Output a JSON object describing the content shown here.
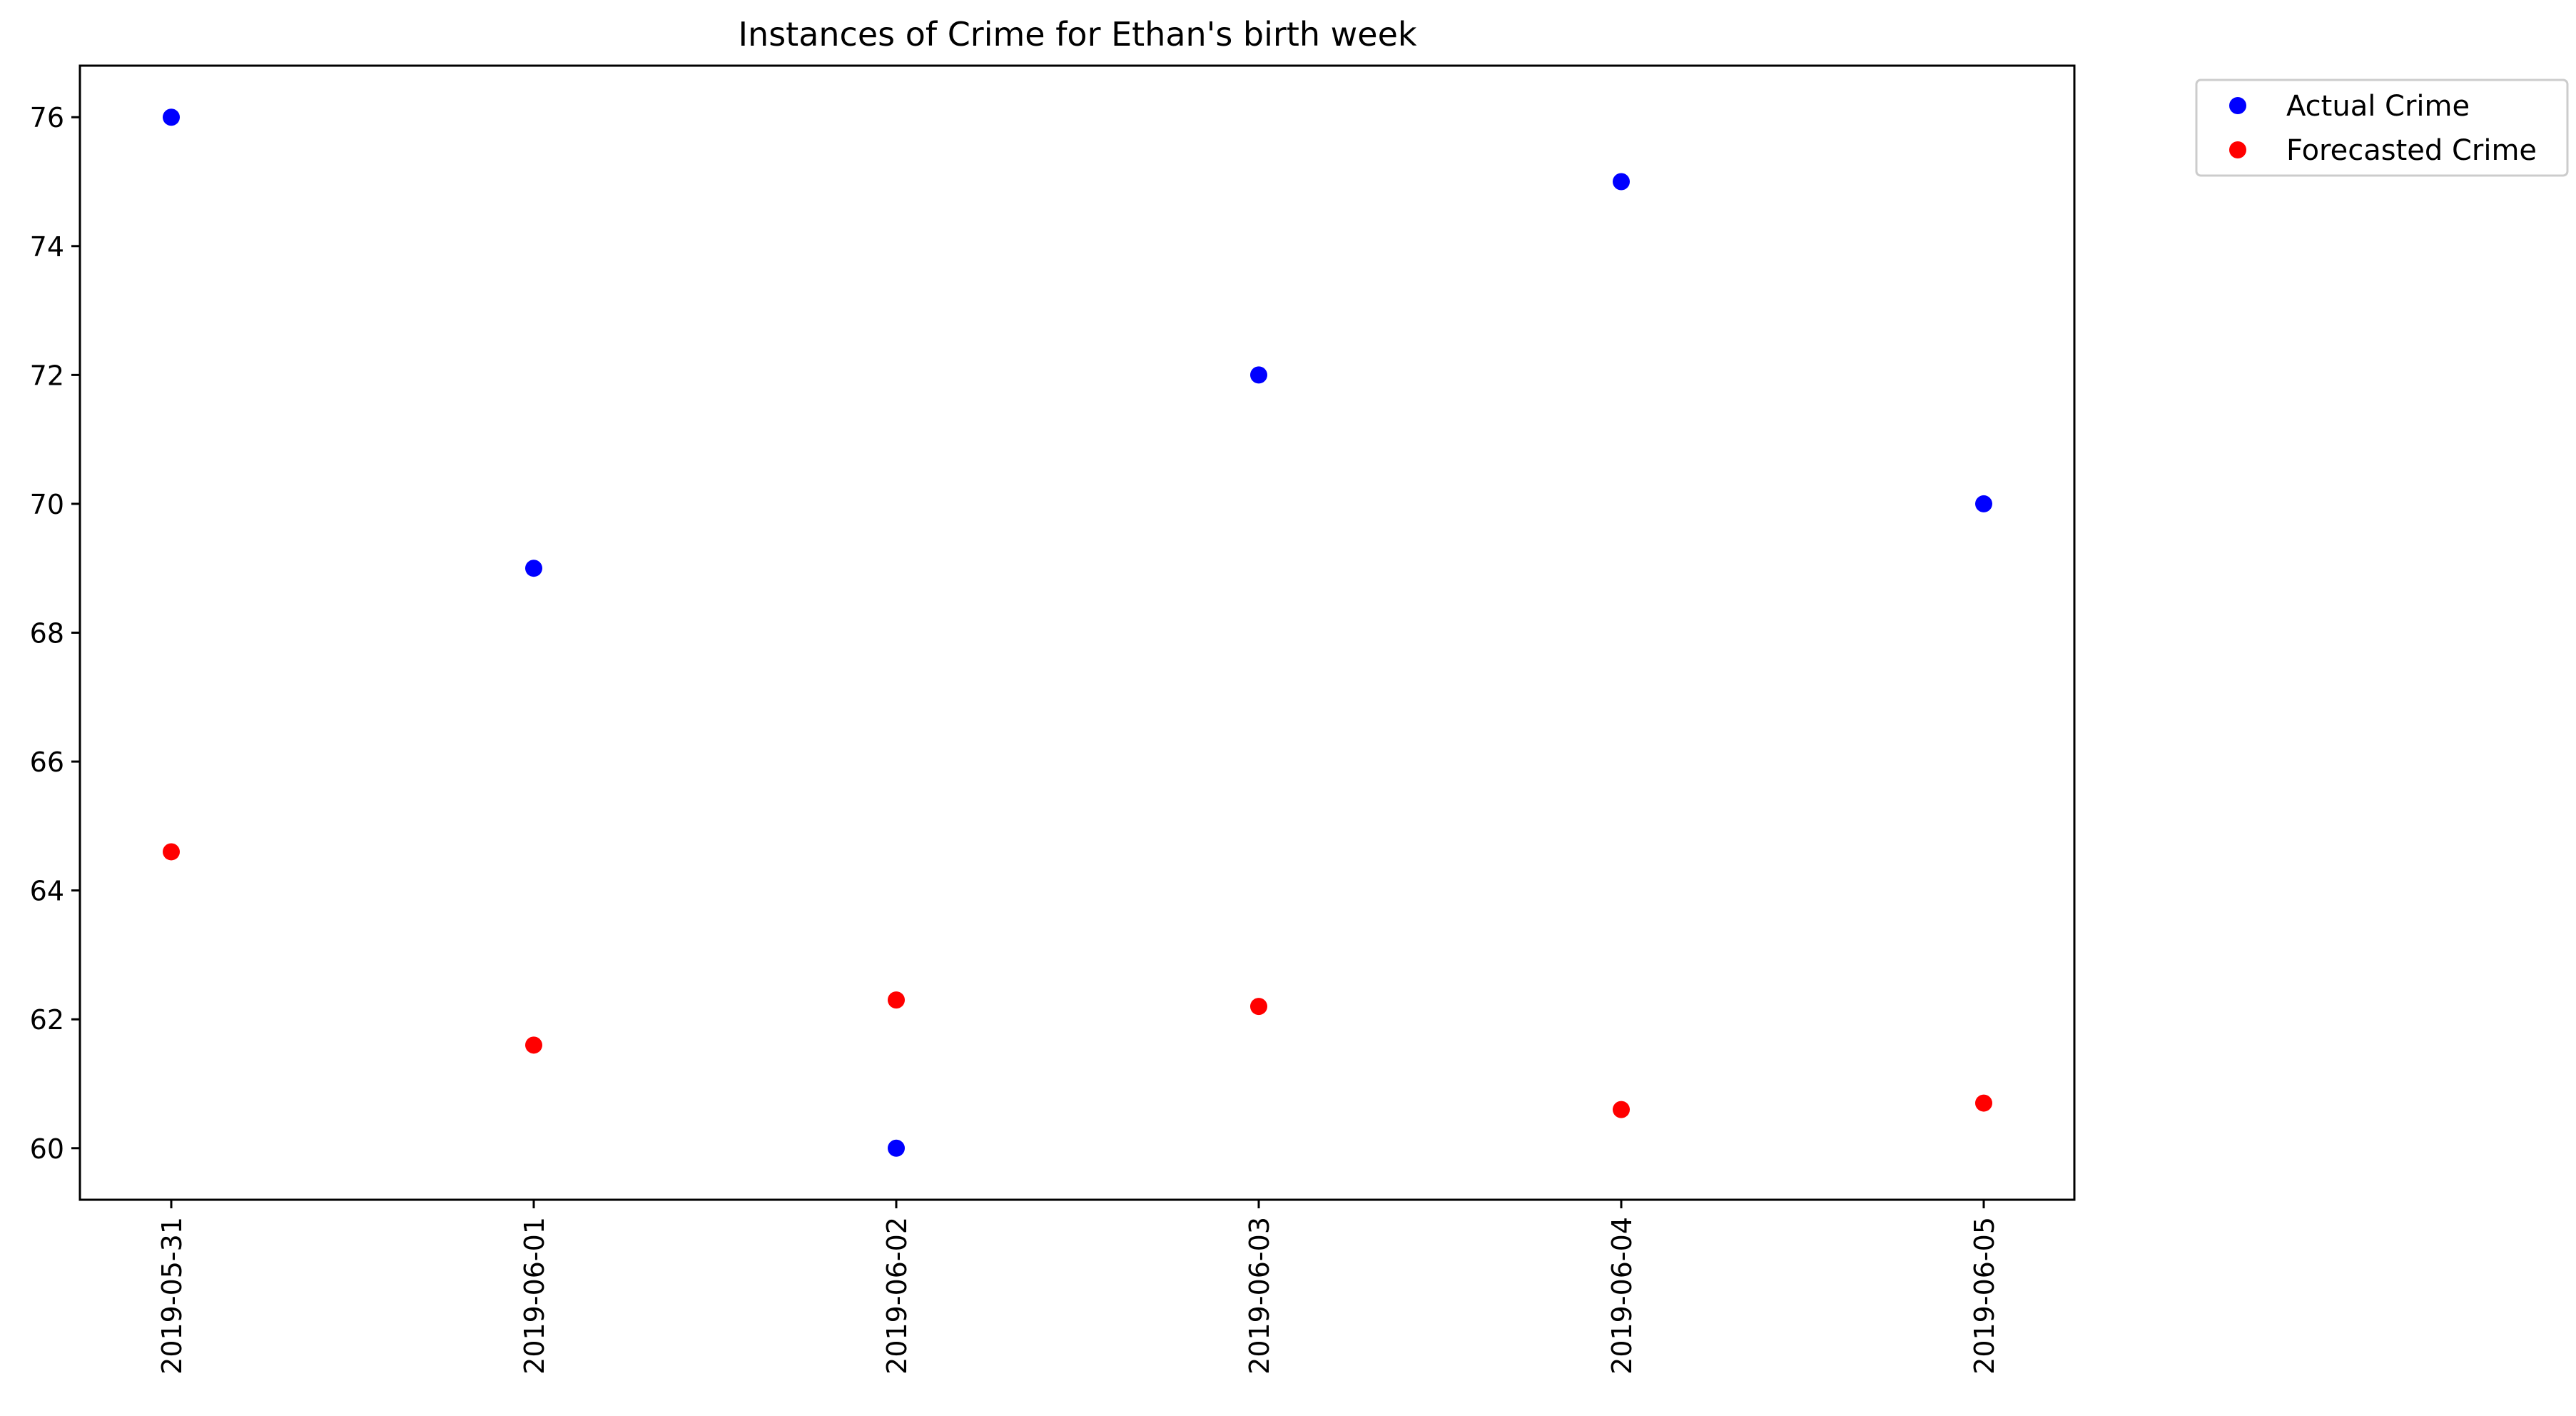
{
  "chart_data": {
    "type": "scatter",
    "title": "Instances of Crime for Ethan's birth week",
    "xlabel": "",
    "ylabel": "",
    "x": [
      "2019-05-31",
      "2019-06-01",
      "2019-06-02",
      "2019-06-03",
      "2019-06-04",
      "2019-06-05"
    ],
    "series": [
      {
        "name": "Actual Crime",
        "color": "#0000ff",
        "values": [
          76,
          69,
          60,
          72,
          75,
          70
        ]
      },
      {
        "name": "Forecasted Crime",
        "color": "#ff0000",
        "values": [
          64.6,
          61.6,
          62.3,
          62.2,
          60.6,
          60.7
        ]
      }
    ],
    "yticks": [
      60,
      62,
      64,
      66,
      68,
      70,
      72,
      74,
      76
    ],
    "ylim": [
      59.2,
      76.8
    ],
    "grid": false,
    "legend_position": "outside-top-right"
  }
}
